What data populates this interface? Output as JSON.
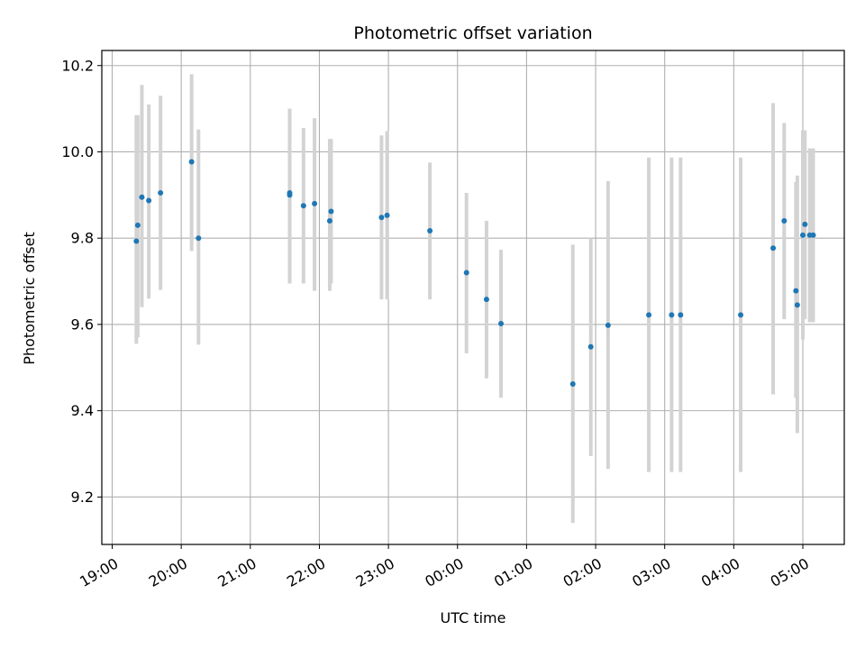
{
  "chart_data": {
    "type": "scatter",
    "title": "Photometric offset variation",
    "xlabel": "UTC time",
    "ylabel": "Photometric offset",
    "grid": true,
    "x_ticks": [
      "19:00",
      "20:00",
      "21:00",
      "22:00",
      "23:00",
      "00:00",
      "01:00",
      "02:00",
      "03:00",
      "04:00",
      "05:00"
    ],
    "x_tick_values": [
      19.0,
      20.0,
      21.0,
      22.0,
      23.0,
      24.0,
      25.0,
      26.0,
      27.0,
      28.0,
      29.0
    ],
    "xlim": [
      18.85,
      29.6
    ],
    "y_ticks": [
      "9.2",
      "9.4",
      "9.6",
      "9.8",
      "10.0",
      "10.2"
    ],
    "y_tick_values": [
      9.2,
      9.4,
      9.6,
      9.8,
      10.0,
      10.2
    ],
    "ylim": [
      9.09,
      10.235
    ],
    "colors": {
      "point": "#1f77b4",
      "errorbar": "#d3d3d3",
      "grid": "#b0b0b0"
    },
    "points": [
      {
        "x": 19.35,
        "y": 9.793,
        "ylo": 9.555,
        "yhi": 10.085
      },
      {
        "x": 19.37,
        "y": 9.83,
        "ylo": 9.57,
        "yhi": 10.085
      },
      {
        "x": 19.43,
        "y": 9.895,
        "ylo": 9.64,
        "yhi": 10.155
      },
      {
        "x": 19.53,
        "y": 9.887,
        "ylo": 9.66,
        "yhi": 10.11
      },
      {
        "x": 19.7,
        "y": 9.905,
        "ylo": 9.68,
        "yhi": 10.13
      },
      {
        "x": 20.15,
        "y": 9.977,
        "ylo": 9.77,
        "yhi": 10.18
      },
      {
        "x": 20.25,
        "y": 9.8,
        "ylo": 9.553,
        "yhi": 10.052
      },
      {
        "x": 21.57,
        "y": 9.9,
        "ylo": 9.695,
        "yhi": 10.1
      },
      {
        "x": 21.57,
        "y": 9.905,
        "ylo": 9.695,
        "yhi": 10.1
      },
      {
        "x": 21.77,
        "y": 9.875,
        "ylo": 9.695,
        "yhi": 10.055
      },
      {
        "x": 21.93,
        "y": 9.88,
        "ylo": 9.678,
        "yhi": 10.078
      },
      {
        "x": 22.15,
        "y": 9.84,
        "ylo": 9.678,
        "yhi": 10.03
      },
      {
        "x": 22.17,
        "y": 9.862,
        "ylo": 9.695,
        "yhi": 10.03
      },
      {
        "x": 22.9,
        "y": 9.848,
        "ylo": 9.658,
        "yhi": 10.038
      },
      {
        "x": 22.98,
        "y": 9.853,
        "ylo": 9.658,
        "yhi": 10.048
      },
      {
        "x": 23.6,
        "y": 9.817,
        "ylo": 9.658,
        "yhi": 9.975
      },
      {
        "x": 24.13,
        "y": 9.72,
        "ylo": 9.533,
        "yhi": 9.905
      },
      {
        "x": 24.42,
        "y": 9.658,
        "ylo": 9.475,
        "yhi": 9.84
      },
      {
        "x": 24.63,
        "y": 9.602,
        "ylo": 9.43,
        "yhi": 9.773
      },
      {
        "x": 25.67,
        "y": 9.462,
        "ylo": 9.14,
        "yhi": 9.785
      },
      {
        "x": 25.93,
        "y": 9.548,
        "ylo": 9.295,
        "yhi": 9.8
      },
      {
        "x": 26.18,
        "y": 9.598,
        "ylo": 9.265,
        "yhi": 9.932
      },
      {
        "x": 26.77,
        "y": 9.622,
        "ylo": 9.258,
        "yhi": 9.987
      },
      {
        "x": 27.1,
        "y": 9.622,
        "ylo": 9.258,
        "yhi": 9.987
      },
      {
        "x": 27.23,
        "y": 9.622,
        "ylo": 9.258,
        "yhi": 9.987
      },
      {
        "x": 28.1,
        "y": 9.622,
        "ylo": 9.258,
        "yhi": 9.987
      },
      {
        "x": 28.57,
        "y": 9.777,
        "ylo": 9.438,
        "yhi": 10.113
      },
      {
        "x": 28.73,
        "y": 9.84,
        "ylo": 9.612,
        "yhi": 10.067
      },
      {
        "x": 28.9,
        "y": 9.678,
        "ylo": 9.43,
        "yhi": 9.93
      },
      {
        "x": 28.92,
        "y": 9.645,
        "ylo": 9.348,
        "yhi": 9.945
      },
      {
        "x": 29.0,
        "y": 9.807,
        "ylo": 9.565,
        "yhi": 10.05
      },
      {
        "x": 29.03,
        "y": 9.832,
        "ylo": 9.612,
        "yhi": 10.05
      },
      {
        "x": 29.1,
        "y": 9.807,
        "ylo": 9.605,
        "yhi": 10.008
      },
      {
        "x": 29.15,
        "y": 9.807,
        "ylo": 9.605,
        "yhi": 10.008
      }
    ]
  }
}
